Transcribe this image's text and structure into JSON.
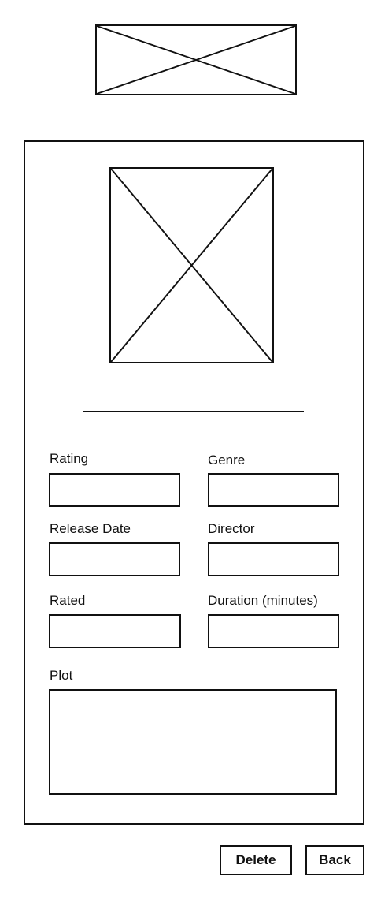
{
  "header": {
    "logo_icon": "image-placeholder-icon"
  },
  "movie": {
    "poster_icon": "image-placeholder-icon",
    "title": ""
  },
  "fields": {
    "rating": {
      "label": "Rating",
      "value": ""
    },
    "genre": {
      "label": "Genre",
      "value": ""
    },
    "release_date": {
      "label": "Release Date",
      "value": ""
    },
    "director": {
      "label": "Director",
      "value": ""
    },
    "rated": {
      "label": "Rated",
      "value": ""
    },
    "duration": {
      "label": "Duration (minutes)",
      "value": ""
    },
    "plot": {
      "label": "Plot",
      "value": ""
    }
  },
  "actions": {
    "delete_label": "Delete",
    "back_label": "Back"
  }
}
